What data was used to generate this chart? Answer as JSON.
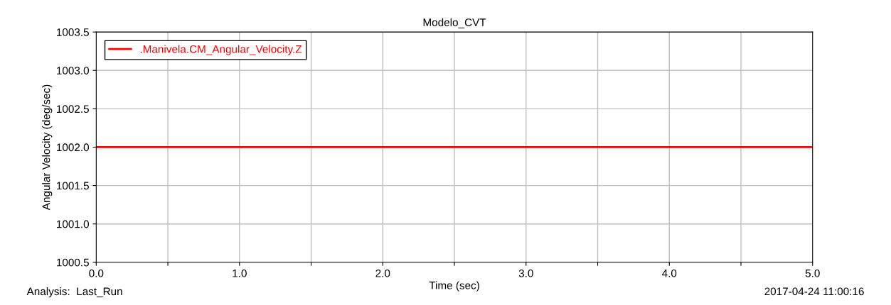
{
  "chart_data": {
    "type": "line",
    "title": "Modelo_CVT",
    "xlabel": "Time (sec)",
    "ylabel": "Angular Velocity (deg/sec)",
    "x": [
      0,
      5
    ],
    "series": [
      {
        "name": ".Manivela.CM_Angular_Velocity.Z",
        "color": "#ff0000",
        "values": [
          1002.0,
          1002.0
        ]
      }
    ],
    "xlim": [
      0,
      5
    ],
    "ylim": [
      1000.5,
      1003.5
    ],
    "xticks": [
      {
        "value": 0,
        "label": "0.0"
      },
      {
        "value": 0.5,
        "label": null
      },
      {
        "value": 1,
        "label": "1.0"
      },
      {
        "value": 1.5,
        "label": null
      },
      {
        "value": 2,
        "label": "2.0"
      },
      {
        "value": 2.5,
        "label": null
      },
      {
        "value": 3,
        "label": "3.0"
      },
      {
        "value": 3.5,
        "label": null
      },
      {
        "value": 4,
        "label": "4.0"
      },
      {
        "value": 4.5,
        "label": null
      },
      {
        "value": 5,
        "label": "5.0"
      }
    ],
    "yticks": [
      1000.5,
      {
        "value": 1001,
        "label": "1001.0"
      },
      1001.5,
      {
        "value": 1002,
        "label": "1002.0"
      },
      1002.5,
      {
        "value": 1003,
        "label": "1003.0"
      },
      1003.5
    ],
    "grid": true,
    "legend": "top left",
    "marker": "none",
    "line_style": "solid",
    "annotations": [
      "Analysis:  Last_Run",
      "2017-04-24 11:00:16"
    ]
  }
}
